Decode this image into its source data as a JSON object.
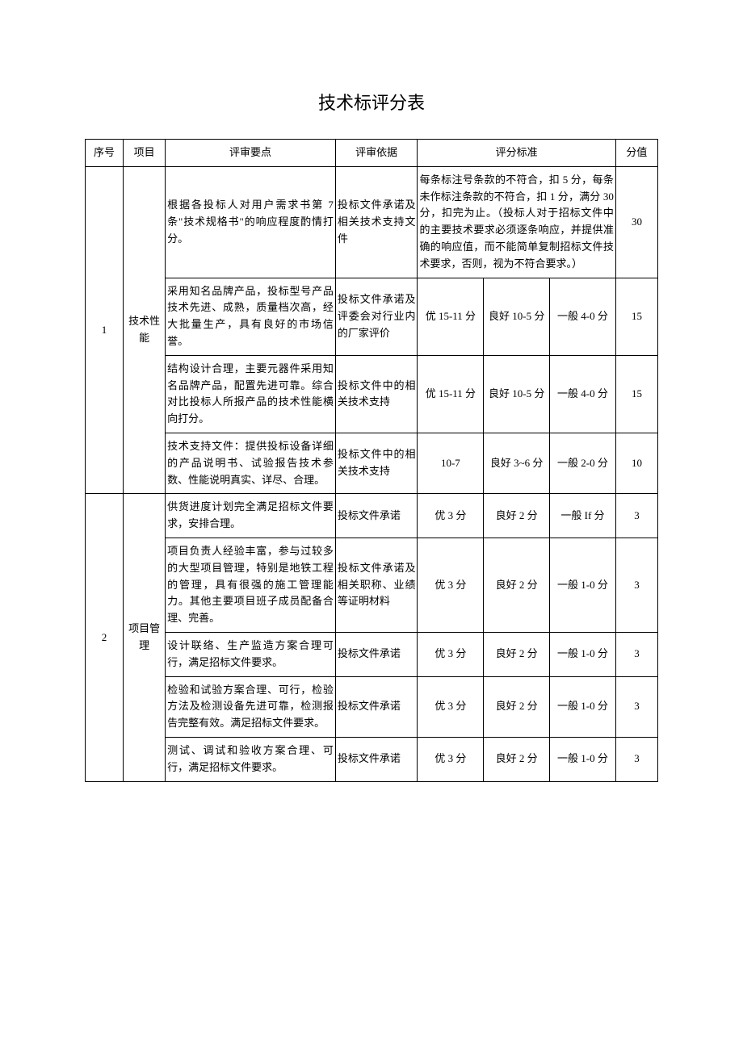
{
  "title": "技术标评分表",
  "columns": {
    "seq": "序号",
    "project": "项目",
    "review_point": "评审要点",
    "review_basis": "评审依据",
    "scoring_std": "评分标准",
    "score": "分值"
  },
  "groups": [
    {
      "seq": "1",
      "project": "技术性能",
      "rows": [
        {
          "point": "根据各投标人对用户需求书第 7 条\"技术规格书\"的响应程度酌情打分。",
          "basis": "投标文件承诺及相关技术支持文件",
          "std_full": "每条标注号条款的不符合，扣 5 分，每条未作标注条款的不符合，扣 1 分，满分 30 分，扣完为止。（投标人对于招标文件中的主要技术要求必须逐条响应，并提供准确的响应值，而不能简单复制招标文件技术要求，否则，视为不符合要求。）",
          "score": "30"
        },
        {
          "point": "采用知名品牌产品，投标型号产品技术先进、成熟，质量档次高，经大批量生产，具有良好的市场信誉。",
          "basis": "投标文件承诺及评委会对行业内的厂家评价",
          "std3": [
            "优 15-11 分",
            "良好 10-5 分",
            "一般 4-0 分"
          ],
          "score": "15"
        },
        {
          "point": "结构设计合理，主要元器件采用知名品牌产品，配置先进可靠。综合对比投标人所报产品的技术性能横向打分。",
          "basis": "投标文件中的相关技术支持",
          "std3": [
            "优 15-11 分",
            "良好 10-5 分",
            "一般 4-0 分"
          ],
          "score": "15"
        },
        {
          "point": "技术支持文件：提供投标设备详细的产品说明书、试验报告技术参数、性能说明真实、详尽、合理。",
          "basis": "投标文件中的相关技术支持",
          "std3": [
            "10-7",
            "良好 3~6 分",
            "一般 2-0 分"
          ],
          "score": "10"
        }
      ]
    },
    {
      "seq": "2",
      "project": "项目管理",
      "rows": [
        {
          "point": "供货进度计划完全满足招标文件要求，安排合理。",
          "basis": "投标文件承诺",
          "std3": [
            "优 3 分",
            "良好 2 分",
            "一般 If 分"
          ],
          "score": "3"
        },
        {
          "point": "项目负责人经验丰富，参与过较多的大型项目管理，特别是地铁工程的管理，具有很强的施工管理能力。其他主要项目班子成员配备合理、完善。",
          "basis": "投标文件承诺及相关职称、业绩等证明材料",
          "std3": [
            "优 3 分",
            "良好 2 分",
            "一般 1-0 分"
          ],
          "score": "3"
        },
        {
          "point": "设计联络、生产监造方案合理可行，满足招标文件要求。",
          "basis": "投标文件承诺",
          "std3": [
            "优 3 分",
            "良好 2 分",
            "一般 1-0 分"
          ],
          "score": "3"
        },
        {
          "point": "检验和试验方案合理、可行，检验方法及检测设备先进可靠，检测报告完整有效。满足招标文件要求。",
          "basis": "投标文件承诺",
          "std3": [
            "优 3 分",
            "良好 2 分",
            "一般 1-0 分"
          ],
          "score": "3"
        },
        {
          "point": "测试、调试和验收方案合理、可行，满足招标文件要求。",
          "basis": "投标文件承诺",
          "std3": [
            "优 3 分",
            "良好 2 分",
            "一般 1-0 分"
          ],
          "score": "3"
        }
      ]
    }
  ]
}
